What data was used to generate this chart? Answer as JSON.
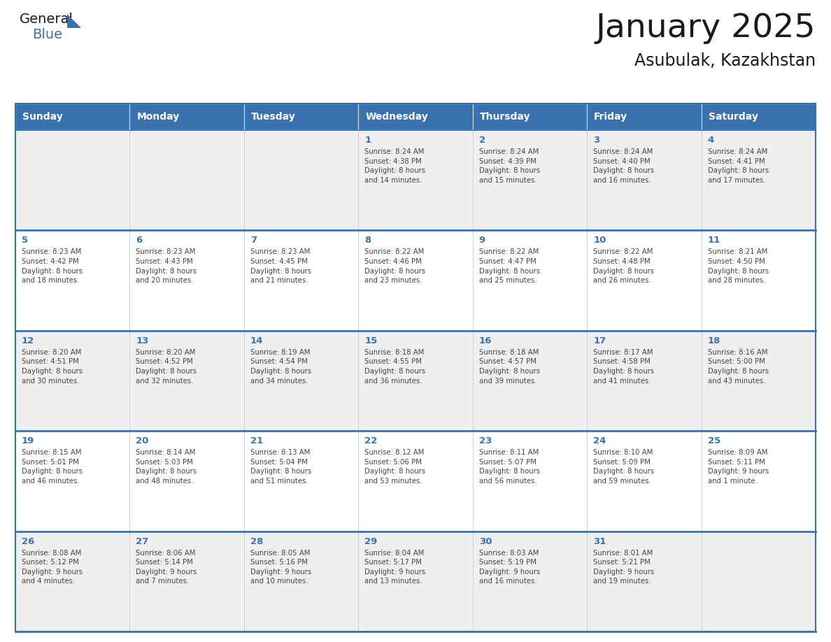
{
  "title": "January 2025",
  "subtitle": "Asubulak, Kazakhstan",
  "days_of_week": [
    "Sunday",
    "Monday",
    "Tuesday",
    "Wednesday",
    "Thursday",
    "Friday",
    "Saturday"
  ],
  "header_bg_color": "#3A72B0",
  "header_text_color": "#FFFFFF",
  "border_color": "#3A72B0",
  "day_number_color": "#3A72B0",
  "cell_text_color": "#444444",
  "title_color": "#1a1a1a",
  "subtitle_color": "#1a1a1a",
  "logo_general_color": "#1a1a1a",
  "logo_blue_color": "#3A72B0",
  "row_colors": [
    "#EFEFEF",
    "#FFFFFF",
    "#EFEFEF",
    "#FFFFFF",
    "#EFEFEF"
  ],
  "weeks": [
    {
      "days": [
        {
          "date": "",
          "info": ""
        },
        {
          "date": "",
          "info": ""
        },
        {
          "date": "",
          "info": ""
        },
        {
          "date": "1",
          "info": "Sunrise: 8:24 AM\nSunset: 4:38 PM\nDaylight: 8 hours\nand 14 minutes."
        },
        {
          "date": "2",
          "info": "Sunrise: 8:24 AM\nSunset: 4:39 PM\nDaylight: 8 hours\nand 15 minutes."
        },
        {
          "date": "3",
          "info": "Sunrise: 8:24 AM\nSunset: 4:40 PM\nDaylight: 8 hours\nand 16 minutes."
        },
        {
          "date": "4",
          "info": "Sunrise: 8:24 AM\nSunset: 4:41 PM\nDaylight: 8 hours\nand 17 minutes."
        }
      ]
    },
    {
      "days": [
        {
          "date": "5",
          "info": "Sunrise: 8:23 AM\nSunset: 4:42 PM\nDaylight: 8 hours\nand 18 minutes."
        },
        {
          "date": "6",
          "info": "Sunrise: 8:23 AM\nSunset: 4:43 PM\nDaylight: 8 hours\nand 20 minutes."
        },
        {
          "date": "7",
          "info": "Sunrise: 8:23 AM\nSunset: 4:45 PM\nDaylight: 8 hours\nand 21 minutes."
        },
        {
          "date": "8",
          "info": "Sunrise: 8:22 AM\nSunset: 4:46 PM\nDaylight: 8 hours\nand 23 minutes."
        },
        {
          "date": "9",
          "info": "Sunrise: 8:22 AM\nSunset: 4:47 PM\nDaylight: 8 hours\nand 25 minutes."
        },
        {
          "date": "10",
          "info": "Sunrise: 8:22 AM\nSunset: 4:48 PM\nDaylight: 8 hours\nand 26 minutes."
        },
        {
          "date": "11",
          "info": "Sunrise: 8:21 AM\nSunset: 4:50 PM\nDaylight: 8 hours\nand 28 minutes."
        }
      ]
    },
    {
      "days": [
        {
          "date": "12",
          "info": "Sunrise: 8:20 AM\nSunset: 4:51 PM\nDaylight: 8 hours\nand 30 minutes."
        },
        {
          "date": "13",
          "info": "Sunrise: 8:20 AM\nSunset: 4:52 PM\nDaylight: 8 hours\nand 32 minutes."
        },
        {
          "date": "14",
          "info": "Sunrise: 8:19 AM\nSunset: 4:54 PM\nDaylight: 8 hours\nand 34 minutes."
        },
        {
          "date": "15",
          "info": "Sunrise: 8:18 AM\nSunset: 4:55 PM\nDaylight: 8 hours\nand 36 minutes."
        },
        {
          "date": "16",
          "info": "Sunrise: 8:18 AM\nSunset: 4:57 PM\nDaylight: 8 hours\nand 39 minutes."
        },
        {
          "date": "17",
          "info": "Sunrise: 8:17 AM\nSunset: 4:58 PM\nDaylight: 8 hours\nand 41 minutes."
        },
        {
          "date": "18",
          "info": "Sunrise: 8:16 AM\nSunset: 5:00 PM\nDaylight: 8 hours\nand 43 minutes."
        }
      ]
    },
    {
      "days": [
        {
          "date": "19",
          "info": "Sunrise: 8:15 AM\nSunset: 5:01 PM\nDaylight: 8 hours\nand 46 minutes."
        },
        {
          "date": "20",
          "info": "Sunrise: 8:14 AM\nSunset: 5:03 PM\nDaylight: 8 hours\nand 48 minutes."
        },
        {
          "date": "21",
          "info": "Sunrise: 8:13 AM\nSunset: 5:04 PM\nDaylight: 8 hours\nand 51 minutes."
        },
        {
          "date": "22",
          "info": "Sunrise: 8:12 AM\nSunset: 5:06 PM\nDaylight: 8 hours\nand 53 minutes."
        },
        {
          "date": "23",
          "info": "Sunrise: 8:11 AM\nSunset: 5:07 PM\nDaylight: 8 hours\nand 56 minutes."
        },
        {
          "date": "24",
          "info": "Sunrise: 8:10 AM\nSunset: 5:09 PM\nDaylight: 8 hours\nand 59 minutes."
        },
        {
          "date": "25",
          "info": "Sunrise: 8:09 AM\nSunset: 5:11 PM\nDaylight: 9 hours\nand 1 minute."
        }
      ]
    },
    {
      "days": [
        {
          "date": "26",
          "info": "Sunrise: 8:08 AM\nSunset: 5:12 PM\nDaylight: 9 hours\nand 4 minutes."
        },
        {
          "date": "27",
          "info": "Sunrise: 8:06 AM\nSunset: 5:14 PM\nDaylight: 9 hours\nand 7 minutes."
        },
        {
          "date": "28",
          "info": "Sunrise: 8:05 AM\nSunset: 5:16 PM\nDaylight: 9 hours\nand 10 minutes."
        },
        {
          "date": "29",
          "info": "Sunrise: 8:04 AM\nSunset: 5:17 PM\nDaylight: 9 hours\nand 13 minutes."
        },
        {
          "date": "30",
          "info": "Sunrise: 8:03 AM\nSunset: 5:19 PM\nDaylight: 9 hours\nand 16 minutes."
        },
        {
          "date": "31",
          "info": "Sunrise: 8:01 AM\nSunset: 5:21 PM\nDaylight: 9 hours\nand 19 minutes."
        },
        {
          "date": "",
          "info": ""
        }
      ]
    }
  ]
}
